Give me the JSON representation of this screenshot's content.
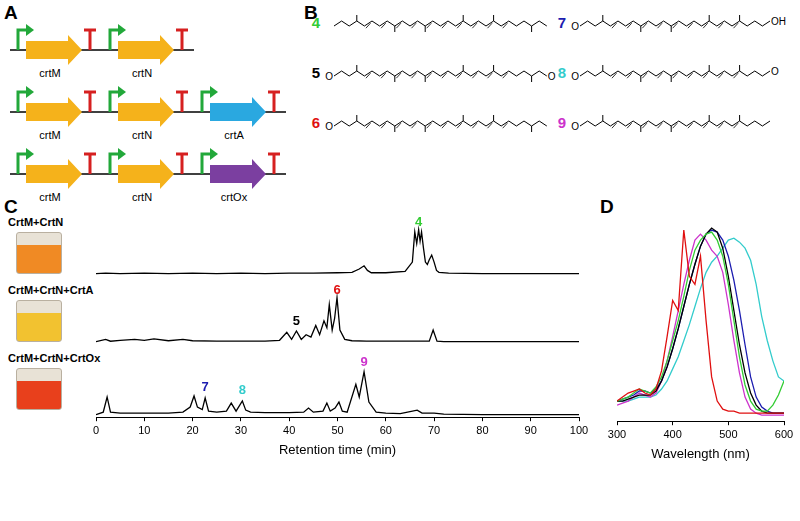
{
  "panel_A": {
    "label": "A",
    "constructs": [
      [
        {
          "name": "crtM",
          "color": "#f5b21b"
        },
        {
          "name": "crtN",
          "color": "#f5b21b"
        }
      ],
      [
        {
          "name": "crtM",
          "color": "#f5b21b"
        },
        {
          "name": "crtN",
          "color": "#f5b21b"
        },
        {
          "name": "crtA",
          "color": "#2aa8e0"
        }
      ],
      [
        {
          "name": "crtM",
          "color": "#f5b21b"
        },
        {
          "name": "crtN",
          "color": "#f5b21b"
        },
        {
          "name": "crtOx",
          "color": "#7b3fa0"
        }
      ]
    ]
  },
  "panel_B": {
    "label": "B",
    "compounds": [
      {
        "number": "4",
        "color": "#33cc33"
      },
      {
        "number": "5",
        "color": "#000000",
        "atoms": [
          "O",
          "O"
        ]
      },
      {
        "number": "6",
        "color": "#e01010",
        "atoms": [
          "O"
        ]
      },
      {
        "number": "7",
        "color": "#1c1cb0",
        "atoms": [
          "O",
          "OH"
        ]
      },
      {
        "number": "8",
        "color": "#33cccc",
        "atoms": [
          "O",
          "O"
        ]
      },
      {
        "number": "9",
        "color": "#cc33cc",
        "atoms": [
          "O"
        ]
      }
    ]
  },
  "panel_C": {
    "label": "C"
  },
  "panel_D": {
    "label": "D"
  },
  "chart_data": [
    {
      "type": "line",
      "title": "CrtM+CrtN",
      "x": [
        0,
        2,
        5,
        10,
        15,
        20,
        25,
        30,
        35,
        40,
        45,
        50,
        53,
        54.5,
        55.5,
        56.2,
        57,
        60,
        64,
        65.5,
        66,
        66.4,
        66.8,
        67.1,
        67.4,
        67.8,
        68.2,
        68.6,
        69,
        69.5,
        70,
        70.5,
        71,
        73,
        80,
        90,
        100
      ],
      "values": [
        0.05,
        0.06,
        0.05,
        0.06,
        0.05,
        0.06,
        0.05,
        0.06,
        0.05,
        0.06,
        0.06,
        0.07,
        0.08,
        0.15,
        0.22,
        0.12,
        0.07,
        0.07,
        0.1,
        0.3,
        0.95,
        0.7,
        1.0,
        0.75,
        0.95,
        0.6,
        0.3,
        0.25,
        0.35,
        0.45,
        0.3,
        0.12,
        0.08,
        0.06,
        0.05,
        0.05,
        0.05
      ],
      "color": "#000000",
      "xlim": [
        0,
        100
      ],
      "ylim": [
        0,
        1.25
      ],
      "tick_labels": false,
      "annotations": [
        {
          "text": "4",
          "x": 66.8,
          "y": 1.02,
          "color": "#33cc33"
        }
      ]
    },
    {
      "type": "line",
      "title": "CrtM+CrtN+CrtA",
      "x": [
        0,
        2,
        3,
        5,
        8,
        10,
        12,
        15,
        18,
        20,
        25,
        30,
        35,
        38,
        39.5,
        40.5,
        41.5,
        42.5,
        43.5,
        44.5,
        45.5,
        46.3,
        47.2,
        47.8,
        48.3,
        48.9,
        49.4,
        49.9,
        50.5,
        51.5,
        53,
        56,
        60,
        65,
        69,
        69.8,
        70.6,
        72,
        80,
        90,
        100
      ],
      "values": [
        0.05,
        0.1,
        0.06,
        0.08,
        0.1,
        0.08,
        0.11,
        0.07,
        0.1,
        0.07,
        0.06,
        0.06,
        0.06,
        0.08,
        0.25,
        0.1,
        0.28,
        0.1,
        0.2,
        0.15,
        0.4,
        0.2,
        0.5,
        0.35,
        0.85,
        0.3,
        0.55,
        1.0,
        0.3,
        0.1,
        0.07,
        0.06,
        0.06,
        0.06,
        0.06,
        0.3,
        0.06,
        0.05,
        0.05,
        0.05,
        0.05
      ],
      "color": "#000000",
      "xlim": [
        0,
        100
      ],
      "ylim": [
        0,
        1.25
      ],
      "tick_labels": false,
      "annotations": [
        {
          "text": "5",
          "x": 41.5,
          "y": 0.35,
          "color": "#000000"
        },
        {
          "text": "6",
          "x": 49.9,
          "y": 1.02,
          "color": "#e01010"
        }
      ]
    },
    {
      "type": "line",
      "title": "CrtM+CrtN+CrtOx",
      "x": [
        0,
        1.5,
        2.3,
        3,
        5,
        10,
        15,
        18,
        19.5,
        20.3,
        21,
        22,
        22.6,
        23.3,
        25,
        27,
        28,
        29,
        30.3,
        31,
        32,
        35,
        40,
        43,
        44,
        45,
        47,
        47.8,
        48.5,
        49.5,
        50.3,
        51,
        52,
        53.8,
        54.5,
        55.5,
        56.5,
        58,
        60,
        63,
        66.5,
        67.5,
        70,
        72,
        80,
        90,
        100
      ],
      "values": [
        0.05,
        0.1,
        0.4,
        0.1,
        0.08,
        0.08,
        0.08,
        0.1,
        0.2,
        0.42,
        0.2,
        0.15,
        0.38,
        0.12,
        0.1,
        0.12,
        0.28,
        0.12,
        0.32,
        0.14,
        0.1,
        0.09,
        0.09,
        0.1,
        0.18,
        0.1,
        0.12,
        0.28,
        0.12,
        0.18,
        0.3,
        0.12,
        0.1,
        0.65,
        0.4,
        0.9,
        0.3,
        0.1,
        0.08,
        0.07,
        0.14,
        0.08,
        0.08,
        0.06,
        0.05,
        0.05,
        0.05
      ],
      "color": "#000000",
      "xlim": [
        0,
        100
      ],
      "xticks": [
        0,
        10,
        20,
        30,
        40,
        50,
        60,
        70,
        80,
        90,
        100
      ],
      "ylim": [
        0,
        1.25
      ],
      "x_label": "Retention time (min)",
      "tick_labels": "x",
      "annotations": [
        {
          "text": "7",
          "x": 22.6,
          "y": 0.47,
          "color": "#1c1cb0"
        },
        {
          "text": "8",
          "x": 30.3,
          "y": 0.4,
          "color": "#33cccc"
        },
        {
          "text": "9",
          "x": 55.5,
          "y": 0.95,
          "color": "#cc33cc"
        }
      ]
    },
    {
      "type": "line",
      "x": [
        300,
        310,
        320,
        330,
        340,
        350,
        360,
        370,
        380,
        390,
        400,
        410,
        420,
        430,
        440,
        450,
        460,
        470,
        480,
        490,
        500,
        510,
        520,
        530,
        540,
        550,
        560,
        570,
        580,
        590,
        600
      ],
      "series": [
        {
          "color": "#e01010",
          "values": [
            0.1,
            0.12,
            0.14,
            0.15,
            0.16,
            0.14,
            0.13,
            0.16,
            0.25,
            0.42,
            0.6,
            0.55,
            0.95,
            0.72,
            0.68,
            0.82,
            0.5,
            0.22,
            0.1,
            0.06,
            0.05,
            0.05,
            0.04,
            0.04,
            0.04,
            0.04,
            0.04,
            0.04,
            0.04,
            0.04,
            0.04
          ]
        },
        {
          "color": "#33cc33",
          "values": [
            0.1,
            0.11,
            0.12,
            0.14,
            0.16,
            0.15,
            0.14,
            0.17,
            0.22,
            0.3,
            0.4,
            0.5,
            0.62,
            0.75,
            0.85,
            0.9,
            0.93,
            0.94,
            0.9,
            0.82,
            0.68,
            0.5,
            0.32,
            0.18,
            0.1,
            0.06,
            0.05,
            0.05,
            0.08,
            0.13,
            0.2
          ]
        },
        {
          "color": "#000000",
          "values": [
            0.1,
            0.1,
            0.11,
            0.12,
            0.13,
            0.13,
            0.13,
            0.15,
            0.2,
            0.27,
            0.36,
            0.46,
            0.57,
            0.68,
            0.78,
            0.87,
            0.93,
            0.96,
            0.94,
            0.86,
            0.72,
            0.55,
            0.38,
            0.24,
            0.14,
            0.08,
            0.05,
            0.04,
            0.04,
            0.04,
            0.04
          ]
        },
        {
          "color": "#1c1cb0",
          "values": [
            0.1,
            0.11,
            0.12,
            0.13,
            0.15,
            0.15,
            0.14,
            0.16,
            0.2,
            0.27,
            0.36,
            0.46,
            0.57,
            0.68,
            0.78,
            0.87,
            0.93,
            0.95,
            0.94,
            0.9,
            0.82,
            0.7,
            0.55,
            0.38,
            0.22,
            0.12,
            0.07,
            0.05,
            0.04,
            0.04,
            0.04
          ]
        },
        {
          "color": "#cc33cc",
          "values": [
            0.08,
            0.09,
            0.1,
            0.12,
            0.14,
            0.13,
            0.12,
            0.14,
            0.2,
            0.3,
            0.42,
            0.55,
            0.68,
            0.8,
            0.9,
            0.93,
            0.9,
            0.85,
            0.82,
            0.74,
            0.58,
            0.4,
            0.24,
            0.12,
            0.06,
            0.04,
            0.03,
            0.03,
            0.03,
            0.03,
            0.03
          ]
        },
        {
          "color": "#33cccc",
          "values": [
            0.1,
            0.1,
            0.1,
            0.11,
            0.12,
            0.12,
            0.12,
            0.13,
            0.16,
            0.2,
            0.26,
            0.32,
            0.4,
            0.48,
            0.57,
            0.66,
            0.74,
            0.79,
            0.82,
            0.86,
            0.9,
            0.91,
            0.89,
            0.86,
            0.8,
            0.68,
            0.52,
            0.4,
            0.3,
            0.22,
            0.2
          ]
        }
      ],
      "xlim": [
        300,
        600
      ],
      "xticks": [
        300,
        400,
        500,
        600
      ],
      "ylim": [
        0,
        1
      ],
      "x_label": "Wavelength (nm)",
      "tick_labels": "x"
    }
  ]
}
